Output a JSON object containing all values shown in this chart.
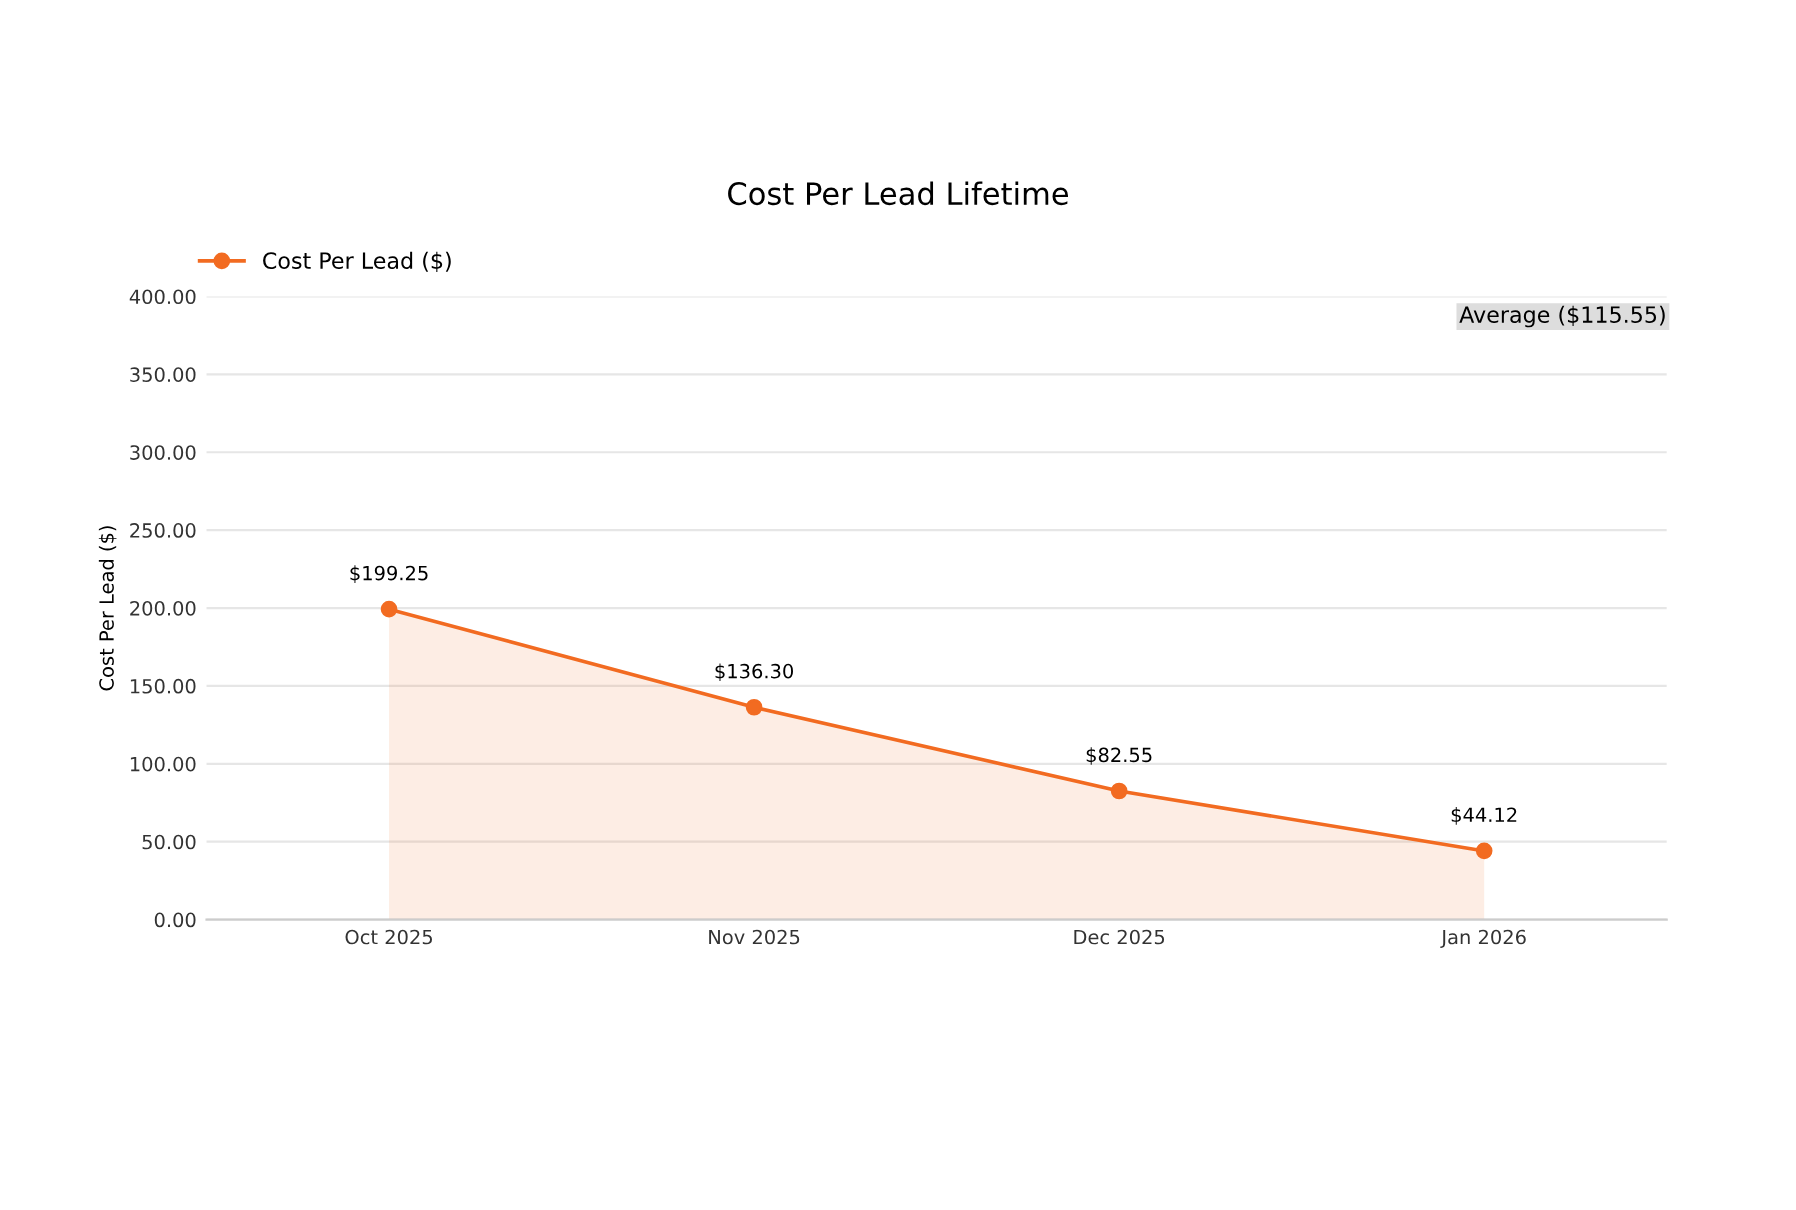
{
  "chart_data": {
    "type": "area",
    "title": "Cost Per Lead Lifetime",
    "ylabel": "Cost Per Lead ($)",
    "categories": [
      "Oct 2025",
      "Nov 2025",
      "Dec 2025",
      "Jan 2026"
    ],
    "series": [
      {
        "name": "Cost Per Lead ($)",
        "color": "#f26b21",
        "values": [
          199.25,
          136.3,
          82.55,
          44.12
        ],
        "value_labels": [
          "$199.25",
          "$136.30",
          "$82.55",
          "$44.12"
        ]
      }
    ],
    "ylim": [
      0,
      400
    ],
    "yticks": [
      {
        "value": 0,
        "label": "0.00"
      },
      {
        "value": 50,
        "label": "50.00"
      },
      {
        "value": 100,
        "label": "100.00"
      },
      {
        "value": 150,
        "label": "150.00"
      },
      {
        "value": 200,
        "label": "200.00"
      },
      {
        "value": 250,
        "label": "250.00"
      },
      {
        "value": 300,
        "label": "300.00"
      },
      {
        "value": 350,
        "label": "350.00"
      },
      {
        "value": 400,
        "label": "400.00"
      }
    ],
    "annotations": [
      "Average ($115.55)"
    ],
    "grid": "y",
    "legend": "top left",
    "marker": "circle",
    "line_style": "solid"
  }
}
